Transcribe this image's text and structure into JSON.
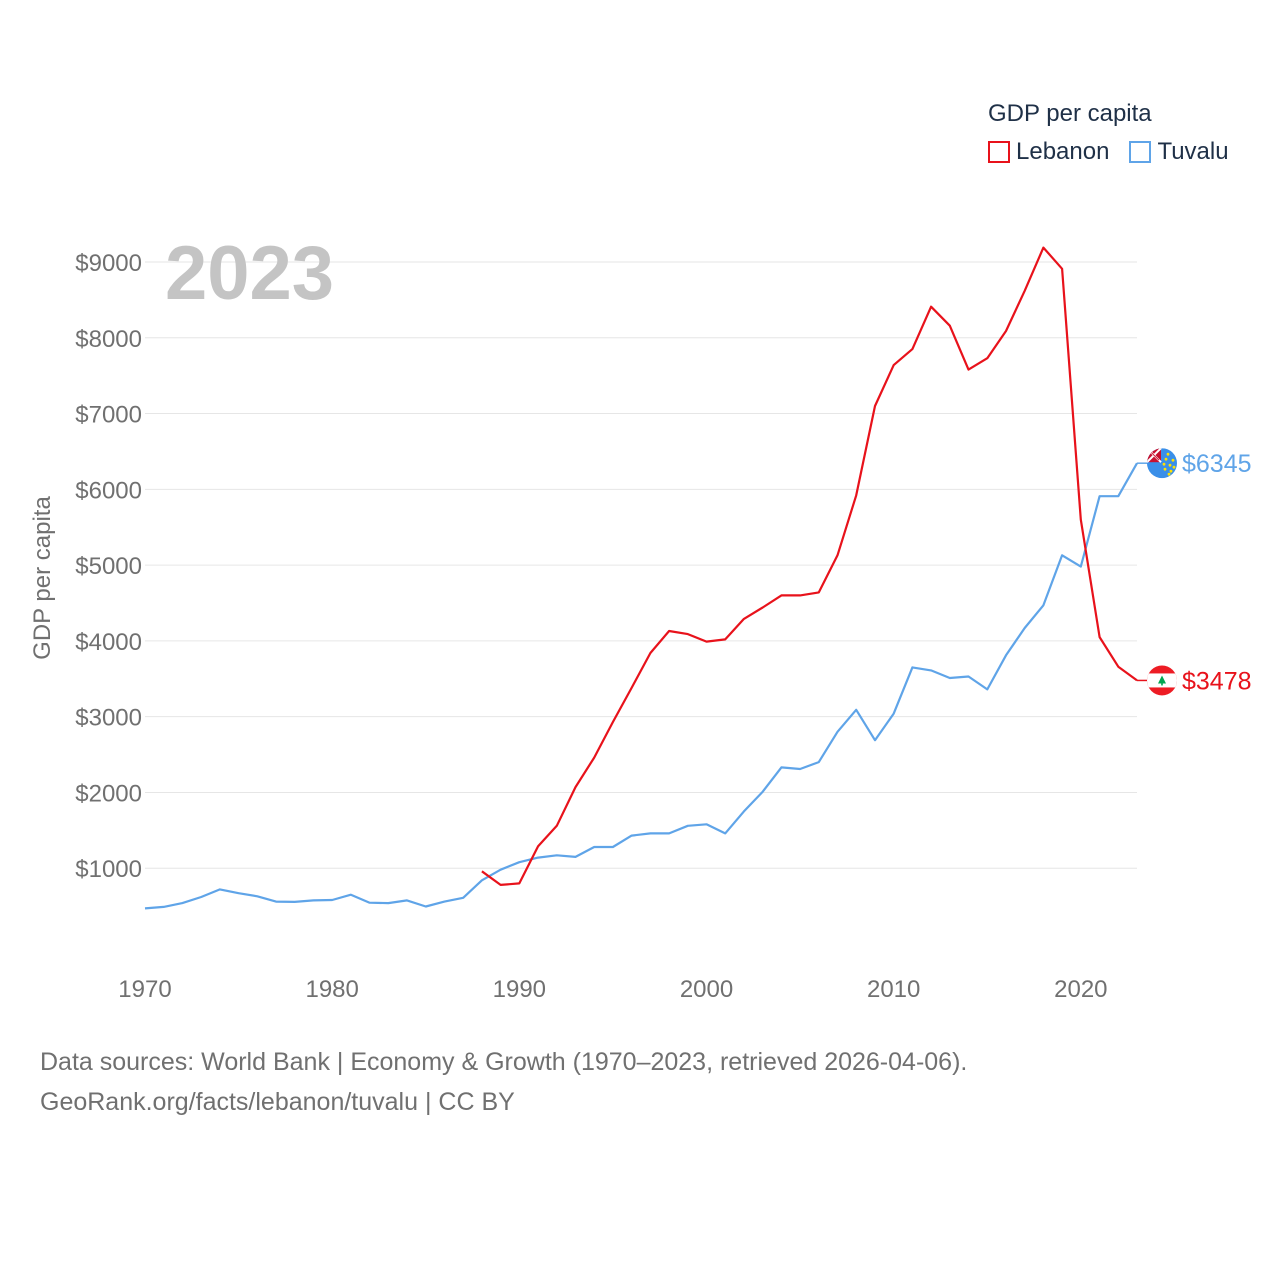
{
  "legend": {
    "title": "GDP per capita",
    "items": [
      {
        "label": "Lebanon",
        "color": "#e8121b"
      },
      {
        "label": "Tuvalu",
        "color": "#5fa4e8"
      }
    ]
  },
  "source": {
    "line1": "Data sources: World Bank | Economy & Growth (1970–2023, retrieved 2026-04-06).",
    "line2": "GeoRank.org/facts/lebanon/tuvalu | CC BY"
  },
  "chart_data": {
    "type": "line",
    "year_label": "2023",
    "ylabel": "GDP per capita",
    "xlim": [
      1970,
      2023
    ],
    "ylim": [
      0,
      9000
    ],
    "x_ticks": [
      1970,
      1980,
      1990,
      2000,
      2010,
      2020
    ],
    "x_tick_labels": [
      "1970",
      "1980",
      "1990",
      "2000",
      "2010",
      "2020"
    ],
    "y_ticks": [
      1000,
      2000,
      3000,
      4000,
      5000,
      6000,
      7000,
      8000,
      9000
    ],
    "y_tick_labels": [
      "$1000",
      "$2000",
      "$3000",
      "$4000",
      "$5000",
      "$6000",
      "$7000",
      "$8000",
      "$9000"
    ],
    "grid": true,
    "series": [
      {
        "name": "Lebanon",
        "color": "#e8121b",
        "end_label": "$3478",
        "flag": "lebanon-flag",
        "x": [
          1988,
          1989,
          1990,
          1991,
          1992,
          1993,
          1994,
          1995,
          1996,
          1997,
          1998,
          1999,
          2000,
          2001,
          2002,
          2003,
          2004,
          2005,
          2006,
          2007,
          2008,
          2009,
          2010,
          2011,
          2012,
          2013,
          2014,
          2015,
          2016,
          2017,
          2018,
          2019,
          2020,
          2021,
          2022,
          2023
        ],
        "values": [
          960,
          780,
          800,
          1290,
          1560,
          2070,
          2460,
          2930,
          3380,
          3840,
          4130,
          4090,
          3990,
          4020,
          4290,
          4440,
          4600,
          4600,
          4640,
          5130,
          5920,
          7100,
          7640,
          7850,
          8410,
          8160,
          7580,
          7730,
          8090,
          8620,
          9190,
          8910,
          5600,
          4050,
          3660,
          3478
        ]
      },
      {
        "name": "Tuvalu",
        "color": "#5fa4e8",
        "end_label": "$6345",
        "flag": "tuvalu-flag",
        "x": [
          1970,
          1971,
          1972,
          1973,
          1974,
          1975,
          1976,
          1977,
          1978,
          1979,
          1980,
          1981,
          1982,
          1983,
          1984,
          1985,
          1986,
          1987,
          1988,
          1989,
          1990,
          1991,
          1992,
          1993,
          1994,
          1995,
          1996,
          1997,
          1998,
          1999,
          2000,
          2001,
          2002,
          2003,
          2004,
          2005,
          2006,
          2007,
          2008,
          2009,
          2010,
          2011,
          2012,
          2013,
          2014,
          2015,
          2016,
          2017,
          2018,
          2019,
          2020,
          2021,
          2022,
          2023
        ],
        "values": [
          470,
          490,
          540,
          620,
          720,
          670,
          630,
          560,
          555,
          575,
          580,
          650,
          545,
          540,
          575,
          495,
          560,
          610,
          840,
          980,
          1080,
          1140,
          1170,
          1150,
          1280,
          1280,
          1430,
          1460,
          1460,
          1560,
          1580,
          1460,
          1750,
          2010,
          2330,
          2310,
          2400,
          2800,
          3090,
          2690,
          3040,
          3650,
          3610,
          3510,
          3530,
          3360,
          3810,
          4170,
          4470,
          5130,
          4980,
          5910,
          5910,
          6345
        ]
      }
    ]
  }
}
